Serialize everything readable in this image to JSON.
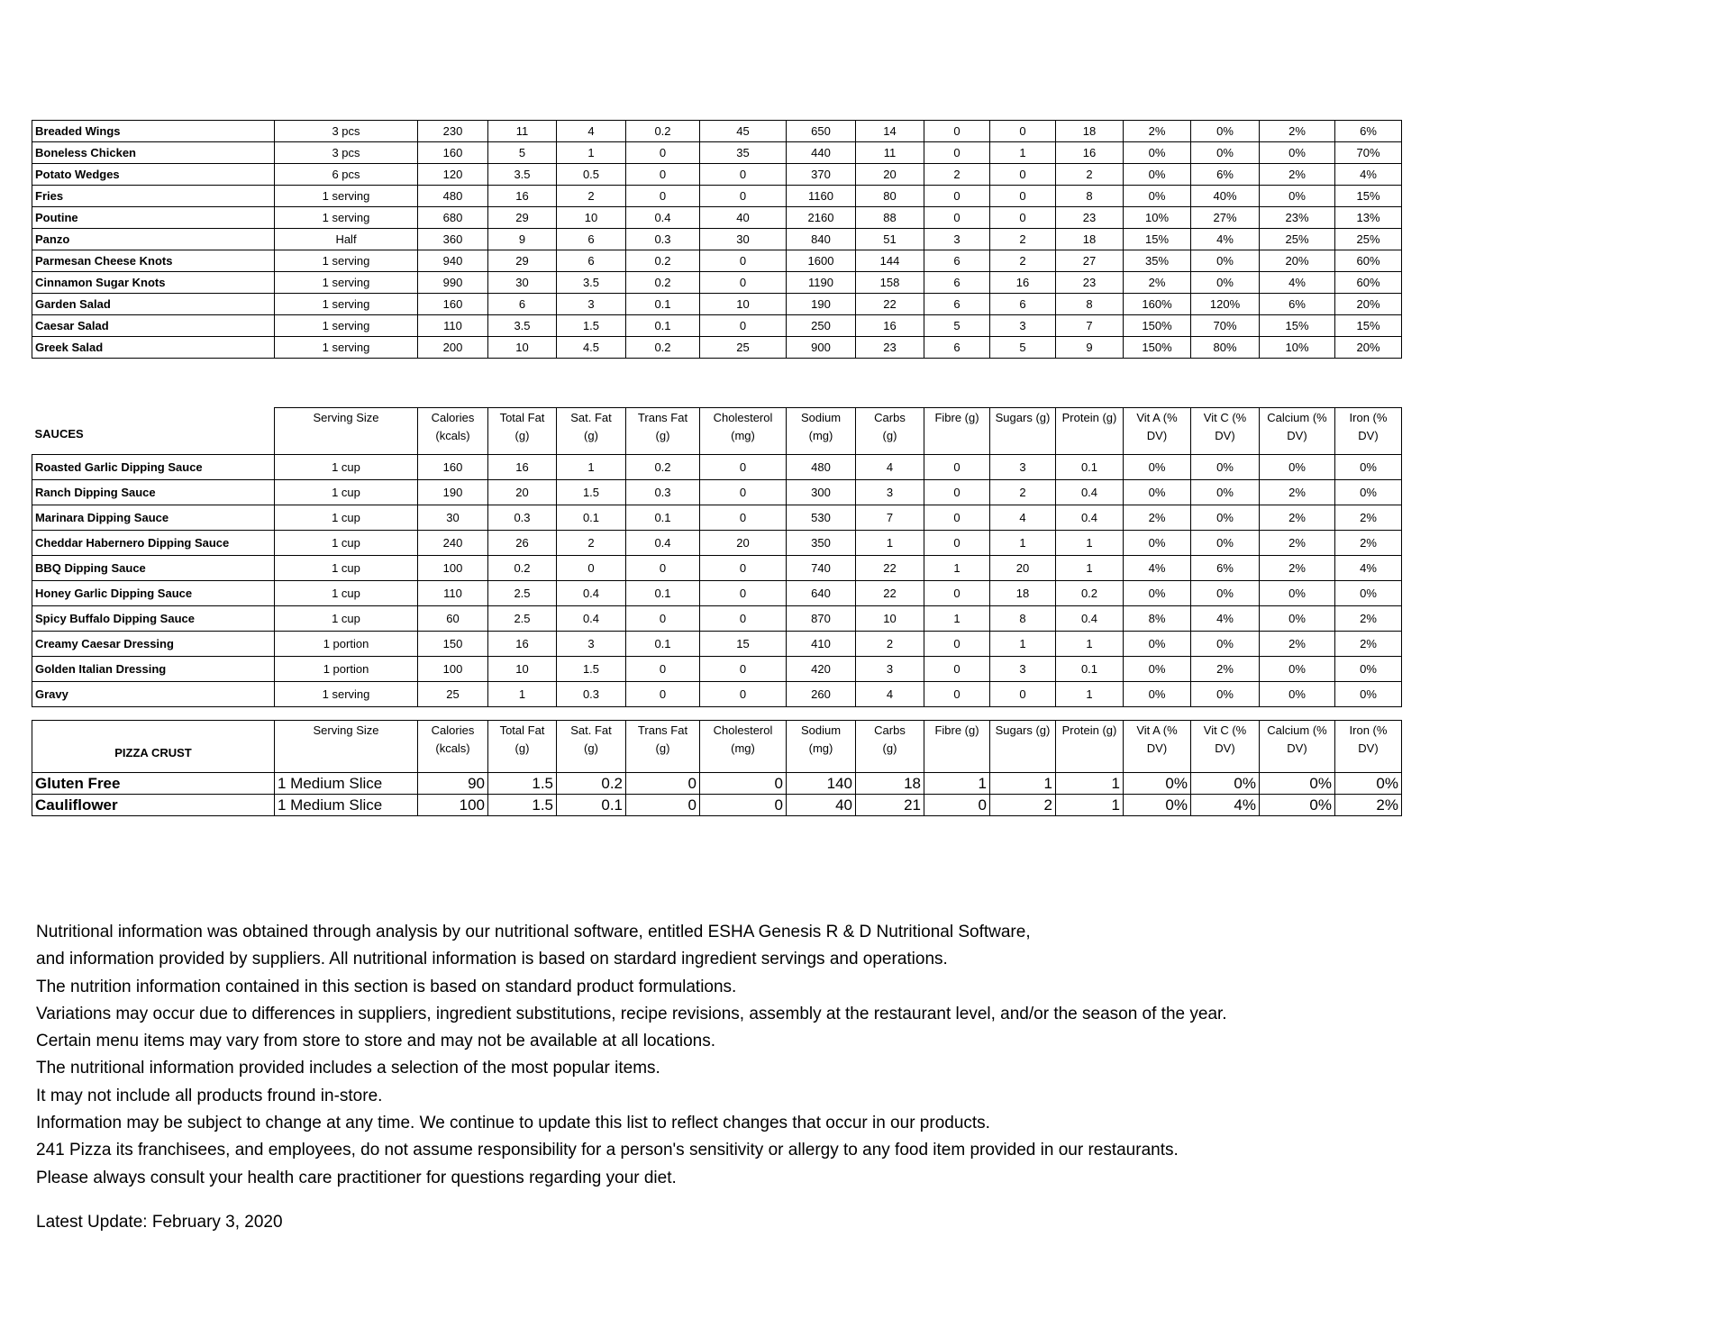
{
  "columns": [
    "Serving Size",
    "Calories (kcals)",
    "Total Fat (g)",
    "Sat. Fat (g)",
    "Trans Fat (g)",
    "Cholesterol (mg)",
    "Sodium (mg)",
    "Carbs (g)",
    "Fibre (g)",
    "Sugars (g)",
    "Protein (g)",
    "Vit A (% DV)",
    "Vit C (% DV)",
    "Calcium (% DV)",
    "Iron (% DV)"
  ],
  "header_lines": [
    [
      "Serving Size",
      ""
    ],
    [
      "Calories",
      "(kcals)"
    ],
    [
      "Total Fat",
      "(g)"
    ],
    [
      "Sat. Fat",
      "(g)"
    ],
    [
      "Trans Fat",
      "(g)"
    ],
    [
      "Cholesterol",
      "(mg)"
    ],
    [
      "Sodium",
      "(mg)"
    ],
    [
      "Carbs",
      "(g)"
    ],
    [
      "Fibre    (g)",
      ""
    ],
    [
      "Sugars (g)",
      ""
    ],
    [
      "Protein (g)",
      ""
    ],
    [
      "Vit A   (%",
      "DV)"
    ],
    [
      "Vit C   (%",
      "DV)"
    ],
    [
      "Calcium (%",
      "DV)"
    ],
    [
      "Iron    (%",
      "DV)"
    ]
  ],
  "items": [
    [
      "Breaded Wings",
      "3 pcs",
      "230",
      "11",
      "4",
      "0.2",
      "45",
      "650",
      "14",
      "0",
      "0",
      "18",
      "2%",
      "0%",
      "2%",
      "6%"
    ],
    [
      "Boneless Chicken",
      "3 pcs",
      "160",
      "5",
      "1",
      "0",
      "35",
      "440",
      "11",
      "0",
      "1",
      "16",
      "0%",
      "0%",
      "0%",
      "70%"
    ],
    [
      "Potato Wedges",
      "6 pcs",
      "120",
      "3.5",
      "0.5",
      "0",
      "0",
      "370",
      "20",
      "2",
      "0",
      "2",
      "0%",
      "6%",
      "2%",
      "4%"
    ],
    [
      "Fries",
      "1 serving",
      "480",
      "16",
      "2",
      "0",
      "0",
      "1160",
      "80",
      "0",
      "0",
      "8",
      "0%",
      "40%",
      "0%",
      "15%"
    ],
    [
      "Poutine",
      "1 serving",
      "680",
      "29",
      "10",
      "0.4",
      "40",
      "2160",
      "88",
      "0",
      "0",
      "23",
      "10%",
      "27%",
      "23%",
      "13%"
    ],
    [
      "Panzo",
      "Half",
      "360",
      "9",
      "6",
      "0.3",
      "30",
      "840",
      "51",
      "3",
      "2",
      "18",
      "15%",
      "4%",
      "25%",
      "25%"
    ],
    [
      "Parmesan Cheese Knots",
      "1 serving",
      "940",
      "29",
      "6",
      "0.2",
      "0",
      "1600",
      "144",
      "6",
      "2",
      "27",
      "35%",
      "0%",
      "20%",
      "60%"
    ],
    [
      "Cinnamon Sugar Knots",
      "1 serving",
      "990",
      "30",
      "3.5",
      "0.2",
      "0",
      "1190",
      "158",
      "6",
      "16",
      "23",
      "2%",
      "0%",
      "4%",
      "60%"
    ],
    [
      "Garden Salad",
      "1 serving",
      "160",
      "6",
      "3",
      "0.1",
      "10",
      "190",
      "22",
      "6",
      "6",
      "8",
      "160%",
      "120%",
      "6%",
      "20%"
    ],
    [
      "Caesar Salad",
      "1 serving",
      "110",
      "3.5",
      "1.5",
      "0.1",
      "0",
      "250",
      "16",
      "5",
      "3",
      "7",
      "150%",
      "70%",
      "15%",
      "15%"
    ],
    [
      "Greek Salad",
      "1 serving",
      "200",
      "10",
      "4.5",
      "0.2",
      "25",
      "900",
      "23",
      "6",
      "5",
      "9",
      "150%",
      "80%",
      "10%",
      "20%"
    ]
  ],
  "sauces": {
    "title": "SAUCES",
    "rows": [
      [
        "Roasted Garlic Dipping Sauce",
        "1 cup",
        "160",
        "16",
        "1",
        "0.2",
        "0",
        "480",
        "4",
        "0",
        "3",
        "0.1",
        "0%",
        "0%",
        "0%",
        "0%"
      ],
      [
        "Ranch Dipping Sauce",
        "1 cup",
        "190",
        "20",
        "1.5",
        "0.3",
        "0",
        "300",
        "3",
        "0",
        "2",
        "0.4",
        "0%",
        "0%",
        "2%",
        "0%"
      ],
      [
        "Marinara Dipping Sauce",
        "1 cup",
        "30",
        "0.3",
        "0.1",
        "0.1",
        "0",
        "530",
        "7",
        "0",
        "4",
        "0.4",
        "2%",
        "0%",
        "2%",
        "2%"
      ],
      [
        "Cheddar Habernero Dipping Sauce",
        "1 cup",
        "240",
        "26",
        "2",
        "0.4",
        "20",
        "350",
        "1",
        "0",
        "1",
        "1",
        "0%",
        "0%",
        "2%",
        "2%"
      ],
      [
        "BBQ Dipping Sauce",
        "1 cup",
        "100",
        "0.2",
        "0",
        "0",
        "0",
        "740",
        "22",
        "1",
        "20",
        "1",
        "4%",
        "6%",
        "2%",
        "4%"
      ],
      [
        "Honey Garlic Dipping Sauce",
        "1 cup",
        "110",
        "2.5",
        "0.4",
        "0.1",
        "0",
        "640",
        "22",
        "0",
        "18",
        "0.2",
        "0%",
        "0%",
        "0%",
        "0%"
      ],
      [
        "Spicy Buffalo Dipping Sauce",
        "1 cup",
        "60",
        "2.5",
        "0.4",
        "0",
        "0",
        "870",
        "10",
        "1",
        "8",
        "0.4",
        "8%",
        "4%",
        "0%",
        "2%"
      ],
      [
        "Creamy Caesar Dressing",
        "1 portion",
        "150",
        "16",
        "3",
        "0.1",
        "15",
        "410",
        "2",
        "0",
        "1",
        "1",
        "0%",
        "0%",
        "2%",
        "2%"
      ],
      [
        "Golden Italian Dressing",
        "1 portion",
        "100",
        "10",
        "1.5",
        "0",
        "0",
        "420",
        "3",
        "0",
        "3",
        "0.1",
        "0%",
        "2%",
        "0%",
        "0%"
      ],
      [
        "Gravy",
        "1 serving",
        "25",
        "1",
        "0.3",
        "0",
        "0",
        "260",
        "4",
        "0",
        "0",
        "1",
        "0%",
        "0%",
        "0%",
        "0%"
      ]
    ]
  },
  "crust": {
    "title": "PIZZA CRUST",
    "rows": [
      [
        "Gluten Free",
        "1 Medium Slice",
        "90",
        "1.5",
        "0.2",
        "0",
        "0",
        "140",
        "18",
        "1",
        "1",
        "1",
        "0%",
        "0%",
        "0%",
        "0%"
      ],
      [
        "Cauliflower",
        "1 Medium Slice",
        "100",
        "1.5",
        "0.1",
        "0",
        "0",
        "40",
        "21",
        "0",
        "2",
        "1",
        "0%",
        "4%",
        "0%",
        "2%"
      ]
    ]
  },
  "notes": [
    "Nutritional information was obtained through analysis by our nutritional software, entitled ESHA Genesis R & D Nutritional Software,",
    "and information provided by suppliers.  All nutritional information is based on stardard ingredient servings and operations.",
    "The nutrition information contained in this section is based on standard product formulations.",
    "Variations may occur due to differences in suppliers, ingredient substitutions, recipe revisions, assembly at the restaurant level, and/or the season of the year.",
    "Certain menu items may vary from store to store and may not be available at all locations.",
    "The nutritional information provided includes a selection of the most popular items.",
    "It may not include all products fround in-store.",
    "Information may be subject to change at any time. We continue to update this list to reflect changes that occur in our products.",
    "241 Pizza its franchisees, and employees, do not assume responsibility for a person's sensitivity or allergy to any food item provided in our restaurants.",
    "Please always consult your health care practitioner for questions regarding your diet."
  ],
  "latest_update": "Latest Update: February 3, 2020"
}
